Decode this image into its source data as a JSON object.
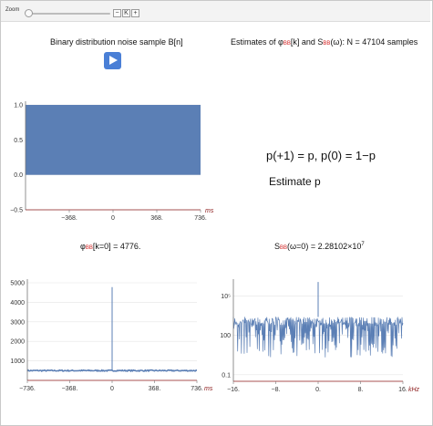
{
  "toolbar": {
    "zoom_label": "Zoom",
    "minus_label": "−",
    "reset_label": "K",
    "plus_label": "+"
  },
  "top_left": {
    "title": "Binary distribution noise sample B[n]"
  },
  "top_right": {
    "title_prefix": "Estimates of ",
    "phi": "φ",
    "sub_bb": "BB",
    "title_mid1": "[k] and S",
    "title_mid2": "(ω): N = 47104 samples"
  },
  "formula": {
    "text": "p(+1) = p,   p(0) = 1−p"
  },
  "estimate": {
    "text": "Estimate p"
  },
  "bottom_left": {
    "title_phi": "φ",
    "title_sub": "BB",
    "title_rest": "[k=0] = 4776."
  },
  "bottom_right": {
    "title_s": "S",
    "title_sub": "BB",
    "title_rest": "(ω=0) = 2.28102×10",
    "title_exp": "7"
  },
  "chart_data": [
    {
      "type": "bar",
      "title": "Binary distribution noise sample B[n]",
      "xlabel": "ms",
      "xlim": [
        -736,
        736
      ],
      "ylim": [
        -0.5,
        1.0
      ],
      "x_ticks": [
        "−368.",
        "0",
        "368.",
        "736."
      ],
      "y_ticks": [
        "1.0",
        "0.5",
        "0.0",
        "−0.5"
      ],
      "y_tick_values": [
        1.0,
        0.5,
        0.0,
        -0.5
      ],
      "x_tick_values": [
        -368,
        0,
        368,
        736
      ],
      "series": [
        {
          "x_range": [
            -736,
            736
          ],
          "values_min": 0.0,
          "values_max": 1.0
        }
      ],
      "color": "#5b7fb5"
    },
    {
      "type": "line",
      "title": "φBB[k=0] = 4776.",
      "xlabel": "ms",
      "xlim": [
        -736,
        736
      ],
      "ylim": [
        0,
        5000
      ],
      "x_ticks": [
        "−736.",
        "−368.",
        "0",
        "368.",
        "736."
      ],
      "x_tick_values": [
        -736,
        -368,
        0,
        368,
        736
      ],
      "y_ticks": [
        "5000",
        "4000",
        "3000",
        "2000",
        "1000"
      ],
      "y_tick_values": [
        5000,
        4000,
        3000,
        2000,
        1000
      ],
      "baseline": 500,
      "peak": {
        "x": 0,
        "y": 4776
      },
      "color": "#5b7fb5"
    },
    {
      "type": "line",
      "title": "SBB(ω=0) = 2.28102×10^7",
      "xlabel": "kHz",
      "xlim": [
        -16,
        16
      ],
      "ylim_log10": [
        -1.5,
        6.0
      ],
      "log_scale": true,
      "x_ticks": [
        "−16.",
        "−8.",
        "0.",
        "8.",
        "16."
      ],
      "x_tick_values": [
        -16,
        -8,
        0,
        8,
        16
      ],
      "y_ticks": [
        "10⁵",
        "100",
        "0.1"
      ],
      "y_tick_log10": [
        5,
        2,
        -1
      ],
      "noise_band_log10": [
        0.3,
        3.4
      ],
      "peak": {
        "x": 0,
        "y": 22810200
      },
      "color": "#5b7fb5"
    }
  ]
}
